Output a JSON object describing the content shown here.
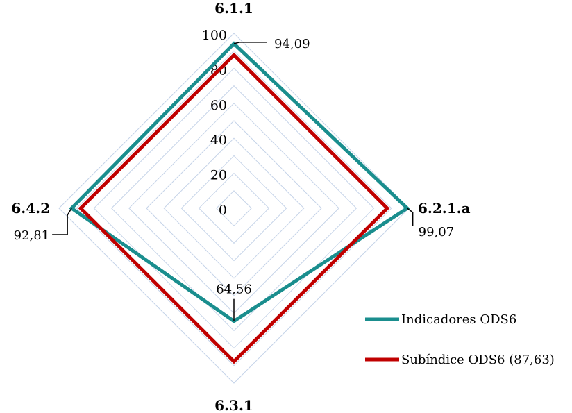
{
  "chart_data": {
    "type": "radar",
    "categories": [
      "6.1.1",
      "6.2.1.a",
      "6.3.1",
      "6.4.2"
    ],
    "rlim": [
      0,
      100
    ],
    "ticks": [
      "0",
      "20",
      "40",
      "60",
      "80",
      "100"
    ],
    "series": [
      {
        "name": "Indicadores ODS6",
        "values": [
          94.09,
          99.07,
          64.56,
          92.81
        ],
        "color": "#1a8e8e",
        "value_labels": [
          "94,09",
          "99,07",
          "64,56",
          "92,81"
        ]
      },
      {
        "name": "Subíndice ODS6 (87,63)",
        "values": [
          87.63,
          87.63,
          87.63,
          87.63
        ],
        "color": "#c00000"
      }
    ],
    "grid_color": "#c5d3e8",
    "legend_position": "bottom-right"
  }
}
